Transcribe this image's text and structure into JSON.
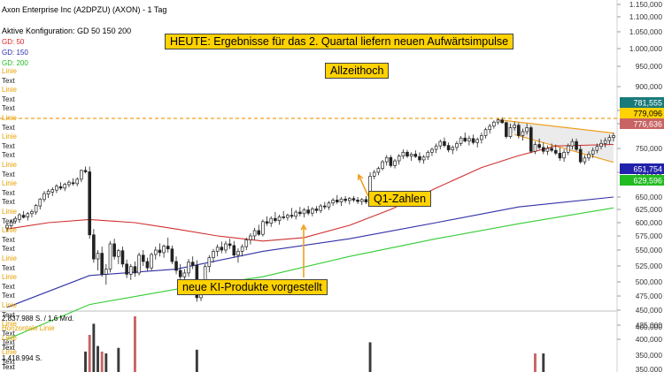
{
  "header": {
    "title": "Axon Enterprise Inc (A2DPZU) (AXON) - 1 Tag",
    "config": "Aktive Konfiguration: GD 50 150 200",
    "legend": [
      {
        "label": "GD: 50",
        "color": "#e02020"
      },
      {
        "label": "GD: 150",
        "color": "#2a2ab0"
      },
      {
        "label": "GD: 200",
        "color": "#22bb22"
      }
    ],
    "drawing_labels": [
      "Linie",
      "Text",
      "Linie",
      "Text",
      "Text",
      "Linie",
      "Text",
      "Linie",
      "Text",
      "Text",
      "Linie",
      "Text",
      "Linie",
      "Text",
      "Text",
      "Linie",
      "Text",
      "Linie",
      "Text",
      "Text",
      "Linie",
      "Text",
      "Linie",
      "Text",
      "Text",
      "Linie",
      "Text",
      "Linie",
      "Text",
      "Text",
      "Linie",
      "Text"
    ]
  },
  "volume_panel": {
    "top_label": "2.837.988 S. / 1,6 Mrd.",
    "line_label": "Horizontale Linie",
    "labels": [
      "Linie",
      "Text"
    ],
    "bottom_label": "1.418.994 S.",
    "last_label": "Text"
  },
  "annotations": {
    "headline": "HEUTE: Ergebnisse für das 2. Quartal liefern neuen Aufwärtsimpulse",
    "ath": "Allzeithoch",
    "q1": "Q1-Zahlen",
    "ki": "neue KI-Produkte vorgestellt"
  },
  "price_labels": [
    {
      "value": "781,555",
      "bg": "#1a7a7a",
      "fg": "#ffffff"
    },
    {
      "value": "779,096",
      "bg": "#ffd200",
      "fg": "#000000"
    },
    {
      "value": "776,636",
      "bg": "#c86464",
      "fg": "#ffffff"
    },
    {
      "value": "651,754",
      "bg": "#2222aa",
      "fg": "#ffffff"
    },
    {
      "value": "629,596",
      "bg": "#22bb22",
      "fg": "#ffffff"
    }
  ],
  "chart_data": {
    "type": "candlestick",
    "ylim": [
      400,
      1150
    ],
    "y_ticks": [
      "1.150,000",
      "1.100,000",
      "1.050,000",
      "1.000,000",
      "950,000",
      "900,000",
      "850,000",
      "800,000",
      "750,000",
      "700,000",
      "650,000",
      "625,000",
      "600,000",
      "575,000",
      "550,000",
      "525,000",
      "500,000",
      "475,000",
      "450,000",
      "425,000",
      "400,000"
    ],
    "volume_ticks": [
      "400,000",
      "350,000",
      "350,000"
    ],
    "candles": [
      [
        "2024-12-30",
        590,
        600,
        583,
        595
      ],
      [
        "2025-01-02",
        594,
        606,
        589,
        602
      ],
      [
        "2025-01-03",
        603,
        612,
        598,
        608
      ],
      [
        "2025-01-06",
        606,
        618,
        600,
        615
      ],
      [
        "2025-01-07",
        614,
        622,
        608,
        610
      ],
      [
        "2025-01-08",
        611,
        620,
        604,
        617
      ],
      [
        "2025-01-09",
        617,
        625,
        610,
        621
      ],
      [
        "2025-01-10",
        620,
        636,
        615,
        633
      ],
      [
        "2025-01-13",
        632,
        648,
        625,
        646
      ],
      [
        "2025-01-14",
        645,
        662,
        640,
        657
      ],
      [
        "2025-01-15",
        656,
        666,
        648,
        662
      ],
      [
        "2025-01-16",
        660,
        670,
        652,
        665
      ],
      [
        "2025-01-17",
        664,
        676,
        658,
        672
      ],
      [
        "2025-01-21",
        671,
        680,
        664,
        668
      ],
      [
        "2025-01-22",
        668,
        679,
        662,
        676
      ],
      [
        "2025-01-23",
        675,
        684,
        670,
        680
      ],
      [
        "2025-01-24",
        679,
        688,
        673,
        677
      ],
      [
        "2025-01-27",
        677,
        690,
        672,
        686
      ],
      [
        "2025-01-28",
        686,
        706,
        680,
        704
      ],
      [
        "2025-01-29",
        704,
        712,
        698,
        701
      ],
      [
        "2025-01-30",
        701,
        712,
        570,
        577
      ],
      [
        "2025-01-31",
        577,
        588,
        530,
        536
      ],
      [
        "2025-02-03",
        536,
        550,
        518,
        545
      ],
      [
        "2025-02-04",
        545,
        556,
        508,
        512
      ],
      [
        "2025-02-05",
        512,
        528,
        495,
        520
      ],
      [
        "2025-02-06",
        520,
        566,
        515,
        561
      ],
      [
        "2025-02-07",
        561,
        570,
        535,
        540
      ],
      [
        "2025-02-10",
        540,
        552,
        528,
        549
      ],
      [
        "2025-02-11",
        549,
        556,
        523,
        528
      ],
      [
        "2025-02-12",
        528,
        535,
        506,
        512
      ],
      [
        "2025-02-13",
        512,
        528,
        503,
        524
      ],
      [
        "2025-02-14",
        524,
        532,
        508,
        514
      ],
      [
        "2025-02-18",
        514,
        546,
        510,
        542
      ],
      [
        "2025-02-19",
        542,
        550,
        525,
        532
      ],
      [
        "2025-02-20",
        532,
        538,
        517,
        522
      ],
      [
        "2025-02-21",
        522,
        546,
        518,
        543
      ],
      [
        "2025-02-24",
        543,
        556,
        535,
        550
      ],
      [
        "2025-02-25",
        550,
        562,
        540,
        546
      ],
      [
        "2025-02-26",
        546,
        560,
        538,
        557
      ],
      [
        "2025-02-27",
        557,
        572,
        546,
        552
      ],
      [
        "2025-02-28",
        552,
        558,
        528,
        532
      ],
      [
        "2025-03-03",
        532,
        540,
        512,
        518
      ],
      [
        "2025-03-04",
        518,
        528,
        498,
        508
      ],
      [
        "2025-03-05",
        508,
        520,
        495,
        514
      ],
      [
        "2025-03-06",
        514,
        536,
        508,
        531
      ],
      [
        "2025-03-07",
        531,
        540,
        520,
        526
      ],
      [
        "2025-03-10",
        526,
        534,
        465,
        472
      ],
      [
        "2025-03-11",
        472,
        496,
        466,
        492
      ],
      [
        "2025-03-12",
        492,
        528,
        488,
        524
      ],
      [
        "2025-03-13",
        524,
        542,
        515,
        538
      ],
      [
        "2025-03-14",
        538,
        552,
        530,
        548
      ],
      [
        "2025-03-17",
        548,
        560,
        540,
        555
      ],
      [
        "2025-03-18",
        555,
        565,
        545,
        550
      ],
      [
        "2025-03-19",
        550,
        566,
        545,
        561
      ],
      [
        "2025-03-20",
        561,
        570,
        552,
        558
      ],
      [
        "2025-03-21",
        558,
        566,
        538,
        542
      ],
      [
        "2025-03-24",
        542,
        553,
        530,
        548
      ],
      [
        "2025-03-25",
        548,
        560,
        540,
        556
      ],
      [
        "2025-03-26",
        556,
        572,
        550,
        568
      ],
      [
        "2025-03-27",
        568,
        580,
        560,
        575
      ],
      [
        "2025-03-28",
        575,
        590,
        568,
        585
      ],
      [
        "2025-03-31",
        585,
        596,
        575,
        578
      ],
      [
        "2025-04-01",
        578,
        606,
        574,
        602
      ],
      [
        "2025-04-02",
        602,
        612,
        594,
        599
      ],
      [
        "2025-04-03",
        599,
        612,
        592,
        608
      ],
      [
        "2025-04-04",
        608,
        620,
        600,
        604
      ],
      [
        "2025-04-07",
        604,
        615,
        596,
        611
      ],
      [
        "2025-04-08",
        611,
        622,
        606,
        610
      ],
      [
        "2025-04-09",
        610,
        617,
        604,
        614
      ],
      [
        "2025-04-10",
        614,
        628,
        608,
        612
      ],
      [
        "2025-04-11",
        612,
        624,
        606,
        620
      ],
      [
        "2025-04-14",
        620,
        630,
        612,
        617
      ],
      [
        "2025-04-15",
        617,
        628,
        610,
        624
      ],
      [
        "2025-04-16",
        624,
        632,
        614,
        618
      ],
      [
        "2025-04-17",
        618,
        630,
        612,
        626
      ],
      [
        "2025-04-21",
        626,
        632,
        618,
        623
      ],
      [
        "2025-04-22",
        623,
        636,
        618,
        632
      ],
      [
        "2025-04-23",
        632,
        640,
        625,
        630
      ],
      [
        "2025-04-24",
        630,
        642,
        624,
        638
      ],
      [
        "2025-04-25",
        638,
        648,
        632,
        644
      ],
      [
        "2025-04-28",
        644,
        654,
        636,
        640
      ],
      [
        "2025-04-29",
        640,
        650,
        632,
        646
      ],
      [
        "2025-04-30",
        646,
        652,
        638,
        643
      ],
      [
        "2025-05-01",
        643,
        650,
        635,
        647
      ],
      [
        "2025-05-02",
        647,
        652,
        640,
        644
      ],
      [
        "2025-05-05",
        644,
        650,
        636,
        641
      ],
      [
        "2025-05-06",
        641,
        648,
        634,
        645
      ],
      [
        "2025-05-07",
        645,
        652,
        636,
        640
      ],
      [
        "2025-05-08",
        648,
        700,
        646,
        692
      ],
      [
        "2025-05-09",
        692,
        705,
        686,
        700
      ],
      [
        "2025-05-12",
        700,
        712,
        694,
        708
      ],
      [
        "2025-05-13",
        708,
        726,
        704,
        722
      ],
      [
        "2025-05-14",
        722,
        736,
        714,
        731
      ],
      [
        "2025-05-15",
        731,
        736,
        710,
        714
      ],
      [
        "2025-05-16",
        714,
        728,
        708,
        724
      ],
      [
        "2025-05-19",
        724,
        738,
        716,
        734
      ],
      [
        "2025-05-20",
        734,
        748,
        728,
        742
      ],
      [
        "2025-05-21",
        742,
        747,
        730,
        734
      ],
      [
        "2025-05-22",
        734,
        742,
        724,
        738
      ],
      [
        "2025-05-23",
        738,
        746,
        730,
        733
      ],
      [
        "2025-05-27",
        733,
        742,
        720,
        726
      ],
      [
        "2025-05-28",
        726,
        736,
        718,
        732
      ],
      [
        "2025-05-29",
        732,
        746,
        726,
        742
      ],
      [
        "2025-05-30",
        742,
        752,
        734,
        748
      ],
      [
        "2025-06-02",
        748,
        760,
        740,
        755
      ],
      [
        "2025-06-03",
        755,
        768,
        748,
        764
      ],
      [
        "2025-06-04",
        764,
        772,
        752,
        756
      ],
      [
        "2025-06-05",
        756,
        762,
        742,
        747
      ],
      [
        "2025-06-06",
        747,
        756,
        738,
        752
      ],
      [
        "2025-06-09",
        752,
        765,
        745,
        760
      ],
      [
        "2025-06-10",
        760,
        775,
        755,
        771
      ],
      [
        "2025-06-11",
        771,
        782,
        762,
        765
      ],
      [
        "2025-06-12",
        765,
        776,
        756,
        770
      ],
      [
        "2025-06-13",
        770,
        778,
        758,
        762
      ],
      [
        "2025-06-16",
        762,
        772,
        752,
        768
      ],
      [
        "2025-06-17",
        768,
        782,
        760,
        776
      ],
      [
        "2025-06-18",
        776,
        792,
        770,
        788
      ],
      [
        "2025-06-20",
        788,
        800,
        780,
        795
      ],
      [
        "2025-06-23",
        795,
        812,
        790,
        806
      ],
      [
        "2025-06-24",
        806,
        820,
        798,
        814
      ],
      [
        "2025-06-25",
        814,
        824,
        800,
        804
      ],
      [
        "2025-06-26",
        804,
        808,
        770,
        774
      ],
      [
        "2025-06-27",
        774,
        800,
        770,
        792
      ],
      [
        "2025-06-30",
        792,
        808,
        786,
        797
      ],
      [
        "2025-07-01",
        797,
        804,
        770,
        776
      ],
      [
        "2025-07-02",
        776,
        790,
        766,
        784
      ],
      [
        "2025-07-03",
        784,
        800,
        778,
        792
      ],
      [
        "2025-07-07",
        792,
        796,
        740,
        744
      ],
      [
        "2025-07-08",
        744,
        764,
        738,
        758
      ],
      [
        "2025-07-09",
        758,
        770,
        748,
        752
      ],
      [
        "2025-07-10",
        752,
        762,
        738,
        744
      ],
      [
        "2025-07-11",
        744,
        756,
        736,
        750
      ],
      [
        "2025-07-14",
        750,
        760,
        742,
        746
      ],
      [
        "2025-07-15",
        746,
        758,
        736,
        740
      ],
      [
        "2025-07-16",
        740,
        752,
        724,
        730
      ],
      [
        "2025-07-17",
        730,
        748,
        722,
        742
      ],
      [
        "2025-07-18",
        742,
        760,
        736,
        755
      ],
      [
        "2025-07-21",
        755,
        770,
        748,
        764
      ],
      [
        "2025-07-22",
        764,
        770,
        744,
        748
      ],
      [
        "2025-07-23",
        748,
        756,
        718,
        722
      ],
      [
        "2025-07-24",
        722,
        736,
        716,
        730
      ],
      [
        "2025-07-25",
        730,
        744,
        724,
        738
      ],
      [
        "2025-07-28",
        738,
        752,
        730,
        746
      ],
      [
        "2025-07-29",
        746,
        760,
        740,
        754
      ],
      [
        "2025-07-30",
        754,
        768,
        748,
        760
      ],
      [
        "2025-07-31",
        760,
        772,
        752,
        766
      ],
      [
        "2025-08-01",
        766,
        778,
        758,
        772
      ],
      [
        "2025-08-04",
        772,
        782,
        764,
        776
      ]
    ],
    "last_price": 779.096,
    "all_time_high": 820,
    "moving_averages": [
      {
        "name": "GD: 50",
        "color": "#d03030",
        "points": [
          [
            "2024-12-30",
            588
          ],
          [
            "2025-01-15",
            600
          ],
          [
            "2025-01-30",
            606
          ],
          [
            "2025-02-14",
            600
          ],
          [
            "2025-03-03",
            588
          ],
          [
            "2025-03-17",
            575
          ],
          [
            "2025-04-01",
            566
          ],
          [
            "2025-04-15",
            572
          ],
          [
            "2025-05-01",
            595
          ],
          [
            "2025-05-15",
            625
          ],
          [
            "2025-06-02",
            668
          ],
          [
            "2025-06-17",
            710
          ],
          [
            "2025-07-01",
            735
          ],
          [
            "2025-07-15",
            755
          ],
          [
            "2025-08-04",
            758
          ]
        ]
      },
      {
        "name": "GD: 150",
        "color": "#3030a8",
        "points": [
          [
            "2024-12-30",
            455
          ],
          [
            "2025-01-30",
            510
          ],
          [
            "2025-03-03",
            520
          ],
          [
            "2025-04-01",
            548
          ],
          [
            "2025-05-01",
            570
          ],
          [
            "2025-06-02",
            600
          ],
          [
            "2025-07-01",
            630
          ],
          [
            "2025-08-04",
            650
          ]
        ]
      },
      {
        "name": "GD: 200",
        "color": "#33cc33",
        "points": [
          [
            "2024-12-30",
            400
          ],
          [
            "2025-01-30",
            460
          ],
          [
            "2025-03-03",
            487
          ],
          [
            "2025-04-01",
            508
          ],
          [
            "2025-05-01",
            540
          ],
          [
            "2025-06-02",
            570
          ],
          [
            "2025-07-01",
            598
          ],
          [
            "2025-08-04",
            628
          ]
        ]
      }
    ],
    "trend_channel": {
      "upper": [
        [
          "2025-06-24",
          815
        ],
        [
          "2025-08-04",
          781
        ]
      ],
      "lower": [
        [
          "2025-06-30",
          778
        ],
        [
          "2025-08-04",
          721
        ]
      ]
    },
    "ath_line": 820,
    "volume": {
      "dates": [
        "2025-01-29",
        "2025-01-30",
        "2025-01-31",
        "2025-02-03",
        "2025-02-04",
        "2025-02-05",
        "2025-02-10",
        "2025-02-14",
        "2025-03-10",
        "2025-05-08",
        "2025-07-08",
        "2025-07-10"
      ],
      "values": [
        1.1,
        2.0,
        2.6,
        1.4,
        1.1,
        1.0,
        1.3,
        3.0,
        1.2,
        1.6,
        1.0,
        1.0
      ]
    }
  }
}
